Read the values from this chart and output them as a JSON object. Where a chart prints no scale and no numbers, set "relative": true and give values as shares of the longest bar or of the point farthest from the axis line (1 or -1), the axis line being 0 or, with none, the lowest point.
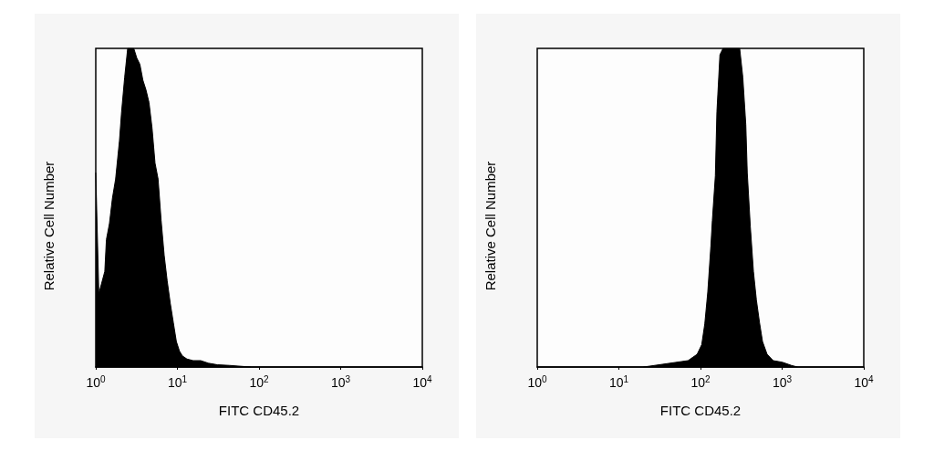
{
  "chart_data": [
    {
      "type": "area",
      "xlabel": "FITC CD45.2",
      "ylabel": "Relative Cell Number",
      "relative": true,
      "log": "x",
      "color": "#000000",
      "xlim": [
        1,
        10000
      ],
      "xticks": [
        {
          "value": 1,
          "label": "10$^{0}$"
        },
        {
          "value": 10,
          "label": "10$^{1}$"
        },
        {
          "value": 100,
          "label": "10$^{2}$"
        },
        {
          "value": 1000,
          "label": "10$^{3}$"
        },
        {
          "value": 10000,
          "label": "10$^{4}$"
        }
      ],
      "x": [
        1,
        1.09,
        1.29,
        1.35,
        1.47,
        1.6,
        1.75,
        1.95,
        2.07,
        2.26,
        2.46,
        2.92,
        3.18,
        3.47,
        3.78,
        4.12,
        4.49,
        4.89,
        5.32,
        5.8,
        6.32,
        6.89,
        7.5,
        8.18,
        8.91,
        9.71,
        10.6,
        11.5,
        13.1,
        15.6,
        19.3,
        23.9,
        30.9,
        43.6,
        79
      ],
      "values": [
        0.61,
        0.23,
        0.3,
        0.4,
        0.45,
        0.53,
        0.59,
        0.71,
        0.8,
        0.91,
        1,
        1,
        0.97,
        0.95,
        0.9,
        0.87,
        0.83,
        0.75,
        0.64,
        0.59,
        0.46,
        0.35,
        0.27,
        0.2,
        0.14,
        0.08,
        0.05,
        0.035,
        0.025,
        0.02,
        0.02,
        0.012,
        0.007,
        0.005,
        0
      ]
    },
    {
      "type": "area",
      "xlabel": "FITC CD45.2",
      "ylabel": "Relative Cell Number",
      "relative": true,
      "log": "x",
      "color": "#000000",
      "xlim": [
        1,
        10000
      ],
      "xticks": [
        {
          "value": 1,
          "label": "10$^{0}$"
        },
        {
          "value": 10,
          "label": "10$^{1}$"
        },
        {
          "value": 100,
          "label": "10$^{2}$"
        },
        {
          "value": 1000,
          "label": "10$^{3}$"
        },
        {
          "value": 10000,
          "label": "10$^{4}$"
        }
      ],
      "x": [
        20,
        70.3,
        91,
        103.5,
        112.8,
        122.8,
        134,
        139.7,
        152,
        158.8,
        173,
        188.8,
        302,
        329.6,
        359,
        374,
        408,
        445,
        484,
        528,
        575,
        654,
        777,
        1005,
        1300,
        1542
      ],
      "values": [
        0,
        0.02,
        0.04,
        0.07,
        0.135,
        0.235,
        0.38,
        0.46,
        0.6,
        0.8,
        0.98,
        1,
        1,
        0.91,
        0.76,
        0.61,
        0.44,
        0.3,
        0.21,
        0.14,
        0.08,
        0.04,
        0.02,
        0.015,
        0.005,
        0
      ]
    }
  ]
}
